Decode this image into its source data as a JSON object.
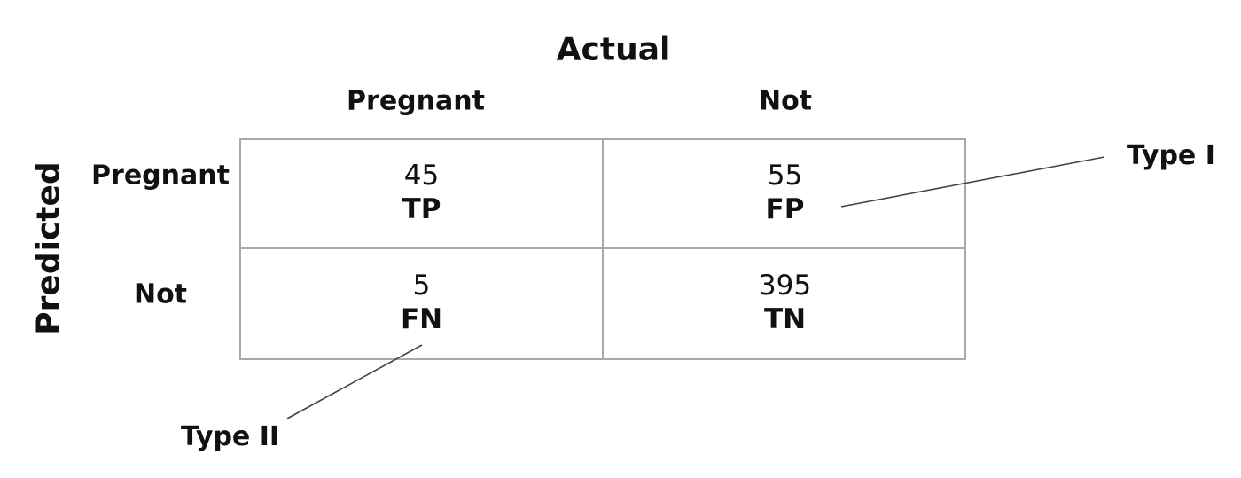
{
  "axes": {
    "actual_title": "Actual",
    "predicted_title": "Predicted"
  },
  "columns": [
    "Pregnant",
    "Not"
  ],
  "rows": [
    "Pregnant",
    "Not"
  ],
  "cells": [
    [
      {
        "count": "45",
        "abbr": "TP"
      },
      {
        "count": "55",
        "abbr": "FP"
      }
    ],
    [
      {
        "count": "5",
        "abbr": "FN"
      },
      {
        "count": "395",
        "abbr": "TN"
      }
    ]
  ],
  "callouts": {
    "type_i": "Type I",
    "type_ii": "Type II"
  },
  "colors": {
    "grid_border": "#a9a9a9",
    "leader_line": "#444444",
    "text": "#111111"
  }
}
